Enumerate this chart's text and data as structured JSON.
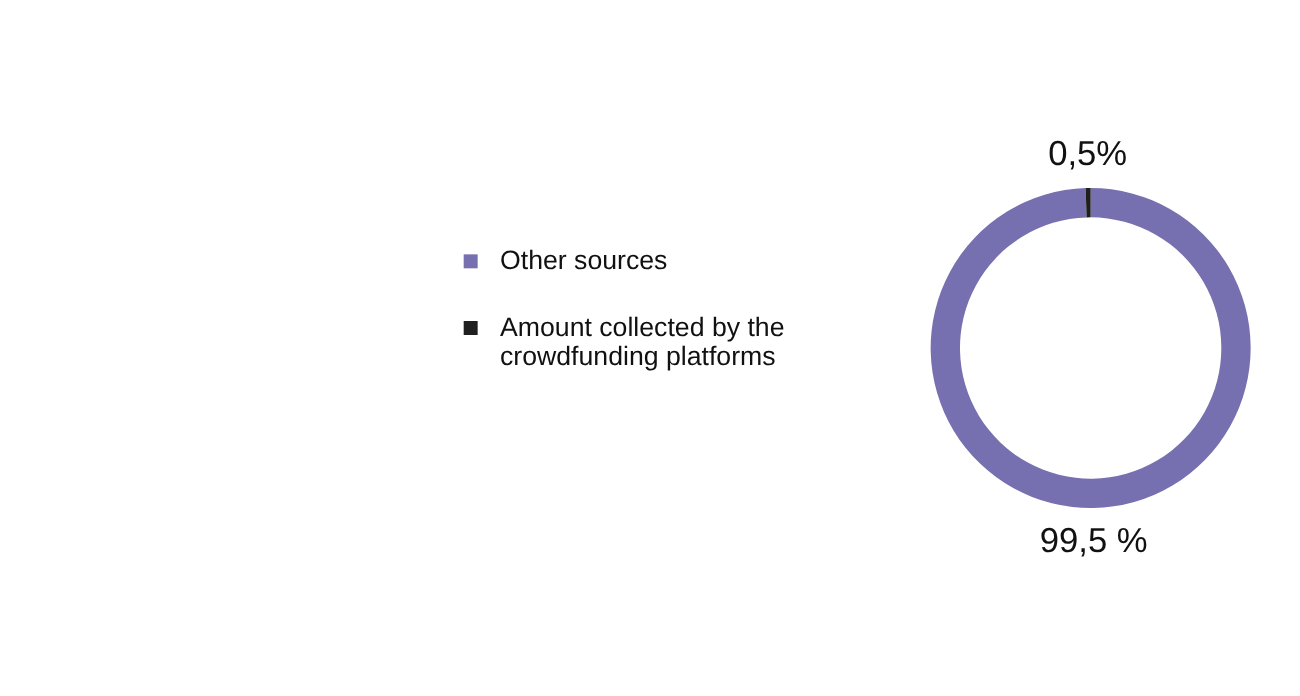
{
  "chart_data": {
    "type": "donut",
    "categories": [
      "Other sources",
      "Amount collected by the crowdfunding platforms"
    ],
    "values": [
      99.5,
      0.5
    ],
    "colors": [
      "#7670b0",
      "#1f1f1f"
    ],
    "value_labels": [
      "99,5 %",
      "0,5%"
    ],
    "legend": "left"
  }
}
